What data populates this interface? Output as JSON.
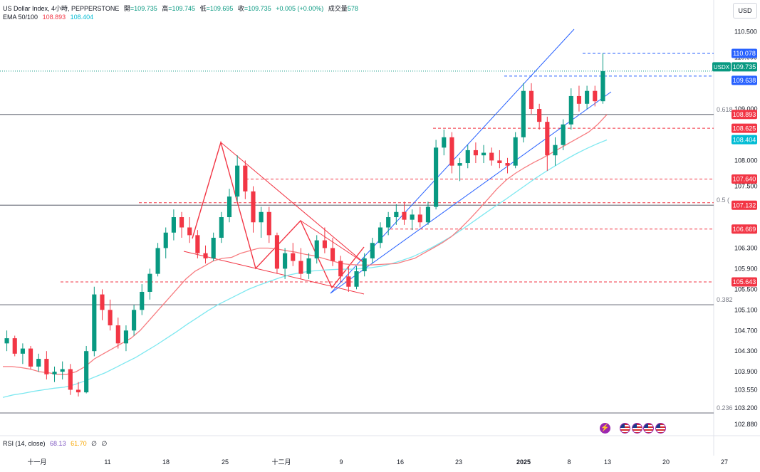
{
  "header": {
    "symbol_title": "US Dollar Index, 4小時, PEPPERSTONE",
    "open_label": "開",
    "open_value": "=109.735",
    "high_label": "高",
    "high_value": "=109.745",
    "low_label": "低",
    "low_value": "=109.695",
    "close_label": "收",
    "close_value": "=109.735",
    "change": "+0.005 (+0.00%)",
    "volume_label": "成交量",
    "volume_value": "578",
    "ema_label": "EMA 50/100",
    "ema_fast_value": "108.893",
    "ema_slow_value": "108.404",
    "currency_button": "USD"
  },
  "rsi": {
    "label": "RSI (14, close)",
    "value_1": "68.13",
    "value_2": "61.70",
    "extra_1": "∅",
    "extra_2": "∅"
  },
  "colors": {
    "up": "#089981",
    "down": "#f23645",
    "ema_fast": "#f77c80",
    "ema_slow": "#7ee8f0",
    "channel": "#2962ff",
    "pattern": "#f23645",
    "fib": "#787b86",
    "ticker_bg": "#089981",
    "blue_label": "#2962ff",
    "red_label": "#f23645",
    "cyan_label": "#00bcd4"
  },
  "chart_data": {
    "type": "candlestick",
    "title": "US Dollar Index, 4小時, PEPPERSTONE",
    "ylim": [
      102.7,
      110.7
    ],
    "y_ticks": [
      "110.500",
      "110.000",
      "109.000",
      "108.000",
      "107.500",
      "106.300",
      "105.900",
      "105.500",
      "105.100",
      "104.700",
      "104.300",
      "103.900",
      "103.550",
      "103.200",
      "102.880"
    ],
    "x_ticks": [
      "十一月",
      "11",
      "18",
      "25",
      "十二月",
      "9",
      "16",
      "23",
      "2025",
      "8",
      "13",
      "20",
      "27"
    ],
    "ohlc": [
      [
        104.45,
        104.7,
        104.3,
        104.55
      ],
      [
        104.55,
        104.6,
        104.2,
        104.25
      ],
      [
        104.25,
        104.45,
        104.05,
        104.35
      ],
      [
        104.35,
        104.4,
        103.95,
        104.0
      ],
      [
        104.0,
        104.25,
        103.9,
        104.15
      ],
      [
        104.15,
        104.3,
        103.75,
        103.85
      ],
      [
        103.85,
        104.0,
        103.7,
        103.9
      ],
      [
        103.9,
        104.1,
        103.75,
        103.95
      ],
      [
        103.95,
        104.05,
        103.45,
        103.55
      ],
      [
        103.55,
        103.7,
        103.42,
        103.5
      ],
      [
        103.5,
        104.4,
        103.48,
        104.3
      ],
      [
        104.3,
        105.55,
        104.2,
        105.4
      ],
      [
        105.4,
        105.5,
        104.9,
        105.1
      ],
      [
        105.1,
        105.3,
        104.7,
        104.8
      ],
      [
        104.8,
        104.95,
        104.35,
        104.45
      ],
      [
        104.45,
        104.8,
        104.3,
        104.7
      ],
      [
        104.7,
        105.2,
        104.6,
        105.1
      ],
      [
        105.1,
        105.6,
        105.0,
        105.45
      ],
      [
        105.45,
        105.9,
        105.3,
        105.8
      ],
      [
        105.8,
        106.4,
        105.75,
        106.3
      ],
      [
        106.3,
        106.7,
        106.1,
        106.6
      ],
      [
        106.6,
        107.05,
        106.45,
        106.9
      ],
      [
        106.9,
        107.0,
        106.5,
        106.7
      ],
      [
        106.7,
        106.9,
        106.4,
        106.55
      ],
      [
        106.55,
        106.65,
        106.1,
        106.2
      ],
      [
        106.2,
        106.35,
        106.0,
        106.1
      ],
      [
        106.1,
        106.6,
        106.05,
        106.5
      ],
      [
        106.5,
        107.0,
        106.4,
        106.9
      ],
      [
        106.9,
        107.45,
        106.8,
        107.3
      ],
      [
        107.3,
        108.1,
        107.2,
        107.9
      ],
      [
        107.9,
        108.0,
        107.25,
        107.4
      ],
      [
        107.4,
        107.5,
        106.6,
        106.8
      ],
      [
        106.8,
        107.1,
        106.5,
        107.0
      ],
      [
        107.0,
        107.1,
        106.4,
        106.55
      ],
      [
        106.55,
        106.6,
        105.8,
        105.9
      ],
      [
        105.9,
        106.3,
        105.7,
        106.2
      ],
      [
        106.2,
        106.4,
        105.95,
        106.05
      ],
      [
        106.05,
        106.3,
        105.7,
        105.8
      ],
      [
        105.8,
        106.2,
        105.7,
        106.1
      ],
      [
        106.1,
        106.55,
        106.0,
        106.45
      ],
      [
        106.45,
        106.7,
        106.2,
        106.3
      ],
      [
        106.3,
        106.5,
        105.95,
        106.05
      ],
      [
        106.05,
        106.15,
        105.65,
        105.75
      ],
      [
        105.75,
        105.95,
        105.45,
        105.55
      ],
      [
        105.55,
        105.95,
        105.5,
        105.85
      ],
      [
        105.85,
        106.2,
        105.75,
        106.1
      ],
      [
        106.1,
        106.5,
        106.0,
        106.4
      ],
      [
        106.4,
        106.8,
        106.3,
        106.7
      ],
      [
        106.7,
        107.0,
        106.55,
        106.9
      ],
      [
        106.9,
        107.15,
        106.75,
        107.0
      ],
      [
        107.0,
        107.2,
        106.75,
        106.85
      ],
      [
        106.85,
        107.05,
        106.65,
        106.95
      ],
      [
        106.95,
        107.1,
        106.7,
        106.8
      ],
      [
        106.8,
        107.2,
        106.75,
        107.1
      ],
      [
        107.1,
        108.4,
        107.05,
        108.25
      ],
      [
        108.25,
        108.6,
        108.1,
        108.45
      ],
      [
        108.45,
        108.55,
        107.75,
        107.9
      ],
      [
        107.9,
        108.05,
        107.6,
        107.95
      ],
      [
        107.95,
        108.3,
        107.85,
        108.2
      ],
      [
        108.2,
        108.35,
        107.95,
        108.1
      ],
      [
        108.1,
        108.3,
        107.95,
        108.15
      ],
      [
        108.15,
        108.25,
        107.9,
        108.0
      ],
      [
        108.0,
        108.2,
        107.85,
        107.95
      ],
      [
        107.95,
        108.05,
        107.75,
        107.9
      ],
      [
        107.9,
        108.55,
        107.85,
        108.45
      ],
      [
        108.45,
        109.5,
        108.35,
        109.35
      ],
      [
        109.35,
        109.5,
        108.9,
        109.0
      ],
      [
        109.0,
        109.1,
        108.6,
        108.75
      ],
      [
        108.75,
        108.85,
        107.8,
        108.1
      ],
      [
        108.1,
        108.45,
        107.9,
        108.3
      ],
      [
        108.3,
        108.8,
        108.2,
        108.7
      ],
      [
        108.7,
        109.4,
        108.6,
        109.25
      ],
      [
        109.25,
        109.45,
        108.95,
        109.1
      ],
      [
        109.1,
        109.45,
        109.0,
        109.35
      ],
      [
        109.35,
        109.45,
        109.05,
        109.15
      ],
      [
        109.15,
        110.08,
        109.1,
        109.735
      ]
    ],
    "ema_fast": [
      104.0,
      104.0,
      103.98,
      103.95,
      103.9,
      103.88,
      103.85,
      103.85,
      103.9,
      104.0,
      104.15,
      104.25,
      104.35,
      104.45,
      104.55,
      104.7,
      104.9,
      105.1,
      105.3,
      105.5,
      105.7,
      105.85,
      105.95,
      106.05,
      106.1,
      106.12,
      106.2,
      106.25,
      106.3,
      106.3,
      106.28,
      106.25,
      106.22,
      106.18,
      106.15,
      106.1,
      106.05,
      106.0,
      105.98,
      105.97,
      105.97,
      105.98,
      105.99,
      106.0,
      106.05,
      106.1,
      106.2,
      106.3,
      106.4,
      106.52,
      106.68,
      106.86,
      107.05,
      107.25,
      107.45,
      107.62,
      107.75,
      107.86,
      107.96,
      108.05,
      108.15,
      108.25,
      108.35,
      108.45,
      108.55,
      108.7,
      108.89
    ],
    "ema_slow": [
      103.4,
      103.45,
      103.48,
      103.52,
      103.55,
      103.58,
      103.6,
      103.65,
      103.72,
      103.8,
      103.88,
      103.98,
      104.08,
      104.18,
      104.3,
      104.42,
      104.55,
      104.68,
      104.82,
      104.95,
      105.08,
      105.2,
      105.3,
      105.4,
      105.5,
      105.58,
      105.65,
      105.72,
      105.78,
      105.82,
      105.85,
      105.87,
      105.88,
      105.89,
      105.89,
      105.9,
      105.92,
      105.95,
      106.0,
      106.06,
      106.13,
      106.22,
      106.32,
      106.43,
      106.55,
      106.68,
      106.82,
      106.96,
      107.1,
      107.23,
      107.37,
      107.51,
      107.65,
      107.78,
      107.9,
      108.02,
      108.13,
      108.23,
      108.32,
      108.4
    ],
    "horizontal_levels": [
      {
        "price": 110.078,
        "label": "110.078",
        "style": "dashed",
        "color": "blue"
      },
      {
        "price": 109.735,
        "label": "109.735",
        "style": "dotted",
        "color": "green",
        "ticker": "USDX"
      },
      {
        "price": 109.638,
        "label": "109.638",
        "style": "dashed",
        "color": "blue"
      },
      {
        "price": 108.893,
        "label": "108.893",
        "style": "solid",
        "color": "gray"
      },
      {
        "price": 108.625,
        "label": "108.625",
        "style": "dashed",
        "color": "red"
      },
      {
        "price": 108.404,
        "label": "108.404",
        "style": "none",
        "color": "cyan"
      },
      {
        "price": 107.64,
        "label": "107.640",
        "style": "dashed",
        "color": "red"
      },
      {
        "price": 107.132,
        "label": "107.132",
        "style": "solid",
        "color": "gray"
      },
      {
        "price": 106.669,
        "label": "106.669",
        "style": "dashed",
        "color": "red"
      },
      {
        "price": 105.643,
        "label": "105.643",
        "style": "dashed",
        "color": "red"
      }
    ],
    "fib_levels": [
      {
        "price": 108.893,
        "label": "0.618"
      },
      {
        "price": 107.132,
        "label": "0.5 ("
      },
      {
        "price": 105.2,
        "label": "0.382"
      },
      {
        "price": 103.1,
        "label": "0.236"
      }
    ],
    "grid": false
  }
}
